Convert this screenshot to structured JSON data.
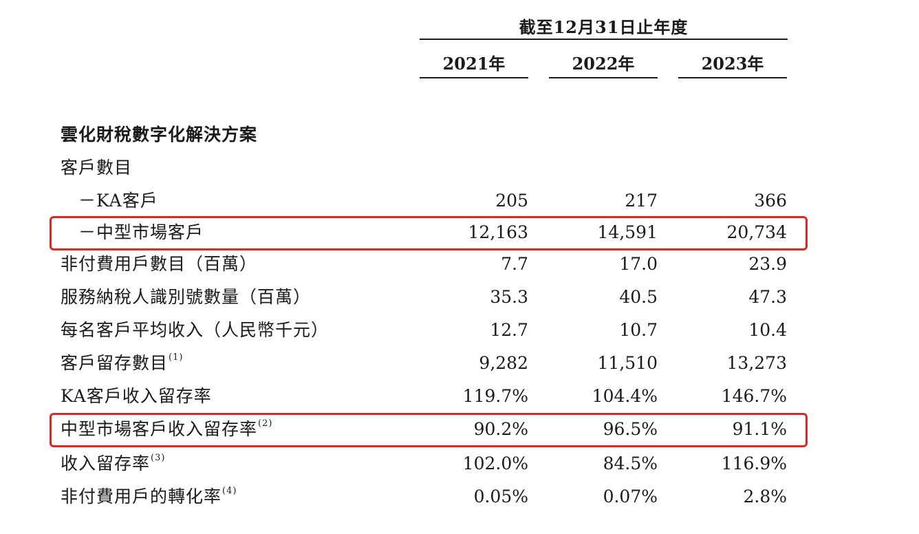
{
  "header": {
    "title": "截至12月31日止年度",
    "years": [
      "2021年",
      "2022年",
      "2023年"
    ]
  },
  "section_title": "雲化財稅數字化解決方案",
  "rows": [
    {
      "label": "客戶數目",
      "note": "",
      "values": [
        "",
        "",
        ""
      ]
    },
    {
      "label": "－KA客戶",
      "note": "",
      "values": [
        "205",
        "217",
        "366"
      ]
    },
    {
      "label": "－中型市場客戶",
      "note": "",
      "values": [
        "12,163",
        "14,591",
        "20,734"
      ]
    },
    {
      "label": "非付費用戶數目（百萬）",
      "note": "",
      "values": [
        "7.7",
        "17.0",
        "23.9"
      ]
    },
    {
      "label": "服務納稅人識別號數量（百萬）",
      "note": "",
      "values": [
        "35.3",
        "40.5",
        "47.3"
      ]
    },
    {
      "label": "每名客戶平均收入（人民幣千元）",
      "note": "",
      "values": [
        "12.7",
        "10.7",
        "10.4"
      ]
    },
    {
      "label": "客戶留存數目",
      "note": "(1)",
      "values": [
        "9,282",
        "11,510",
        "13,273"
      ]
    },
    {
      "label": "KA客戶收入留存率",
      "note": "",
      "values": [
        "119.7%",
        "104.4%",
        "146.7%"
      ]
    },
    {
      "label": "中型市場客戶收入留存率",
      "note": "(2)",
      "values": [
        "90.2%",
        "96.5%",
        "91.1%"
      ]
    },
    {
      "label": "收入留存率",
      "note": "(3)",
      "values": [
        "102.0%",
        "84.5%",
        "116.9%"
      ]
    },
    {
      "label": "非付費用戶的轉化率",
      "note": "(4)",
      "values": [
        "0.05%",
        "0.07%",
        "2.8%"
      ]
    }
  ],
  "highlight_color": "#e0261e"
}
